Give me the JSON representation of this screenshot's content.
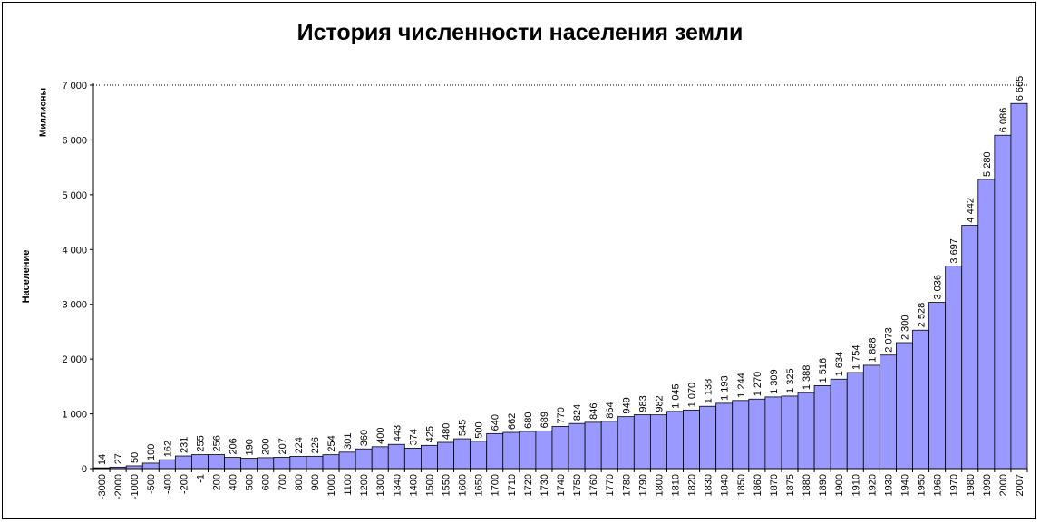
{
  "chart_data": {
    "type": "bar",
    "title": "История численности населения земли",
    "ylabel": "Население",
    "unit_label": "Миллионы",
    "xlabel": "",
    "ylim": [
      0,
      7000
    ],
    "yticks": [
      0,
      1000,
      2000,
      3000,
      4000,
      5000,
      6000,
      7000
    ],
    "ytick_labels": [
      "0",
      "1 000",
      "2 000",
      "3 000",
      "4 000",
      "5 000",
      "6 000",
      "7 000"
    ],
    "bar_color": "#9999ff",
    "gridline": 7000,
    "categories": [
      "-3000",
      "-2000",
      "-1000",
      "-500",
      "-400",
      "-200",
      "-1",
      "200",
      "400",
      "500",
      "600",
      "700",
      "800",
      "900",
      "1000",
      "1100",
      "1200",
      "1300",
      "1340",
      "1400",
      "1500",
      "1550",
      "1600",
      "1650",
      "1700",
      "1710",
      "1720",
      "1730",
      "1740",
      "1750",
      "1760",
      "1770",
      "1780",
      "1790",
      "1800",
      "1810",
      "1820",
      "1830",
      "1840",
      "1850",
      "1860",
      "1870",
      "1875",
      "1880",
      "1890",
      "1900",
      "1910",
      "1920",
      "1930",
      "1940",
      "1950",
      "1960",
      "1970",
      "1980",
      "1990",
      "2000",
      "2007"
    ],
    "values": [
      14,
      27,
      50,
      100,
      162,
      231,
      255,
      256,
      206,
      190,
      200,
      207,
      224,
      226,
      254,
      301,
      360,
      400,
      443,
      374,
      425,
      480,
      545,
      500,
      640,
      662,
      680,
      689,
      770,
      824,
      846,
      864,
      949,
      983,
      982,
      1045,
      1070,
      1138,
      1193,
      1244,
      1270,
      1309,
      1325,
      1388,
      1516,
      1634,
      1754,
      1888,
      2073,
      2300,
      2528,
      3036,
      3697,
      4442,
      5280,
      6086,
      6665
    ],
    "value_labels": [
      "14",
      "27",
      "50",
      "100",
      "162",
      "231",
      "255",
      "256",
      "206",
      "190",
      "200",
      "207",
      "224",
      "226",
      "254",
      "301",
      "360",
      "400",
      "443",
      "374",
      "425",
      "480",
      "545",
      "500",
      "640",
      "662",
      "680",
      "689",
      "770",
      "824",
      "846",
      "864",
      "949",
      "983",
      "982",
      "1 045",
      "1 070",
      "1 138",
      "1 193",
      "1 244",
      "1 270",
      "1 309",
      "1 325",
      "1 388",
      "1 516",
      "1 634",
      "1 754",
      "1 888",
      "2 073",
      "2 300",
      "2 528",
      "3 036",
      "3 697",
      "4 442",
      "5 280",
      "6 086",
      "6 665"
    ]
  }
}
